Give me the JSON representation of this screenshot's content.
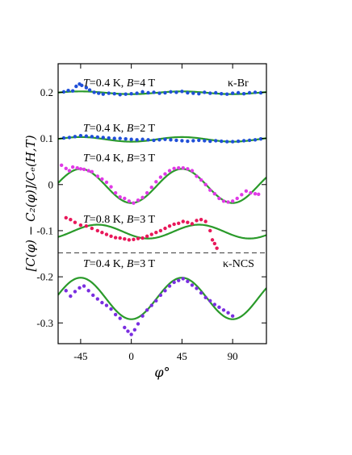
{
  "chart_data": {
    "type": "scatter",
    "xlabel": "φ°",
    "ylabel": "[C(φ) − C₂(φ)]/Cₑ(H,T)",
    "xlim": [
      -65,
      120
    ],
    "ylim": [
      -0.345,
      0.262
    ],
    "x_ticks": [
      -45,
      0,
      45,
      90
    ],
    "x_tick_labels": [
      "-45",
      "0",
      "45",
      "90"
    ],
    "y_ticks": [
      -0.3,
      -0.2,
      -0.1,
      0,
      0.1,
      0.2
    ],
    "y_tick_labels": [
      "-0.3",
      "-0.2",
      "-0.1",
      "0",
      "0.1",
      "0.2"
    ],
    "divider_y": -0.148,
    "series": [
      {
        "name": "T=0.4 K, B=4 T",
        "color": "#1f4fd8",
        "curve_color": "#2a9a2a",
        "fit": {
          "offset": 0.199,
          "amp": 0.003,
          "phase": 45
        },
        "points": [
          [
            -60,
            0.201
          ],
          [
            -56,
            0.204
          ],
          [
            -52,
            0.203
          ],
          [
            -49,
            0.213
          ],
          [
            -46,
            0.218
          ],
          [
            -44,
            0.215
          ],
          [
            -40,
            0.21
          ],
          [
            -37,
            0.205
          ],
          [
            -33,
            0.2
          ],
          [
            -29,
            0.198
          ],
          [
            -25,
            0.196
          ],
          [
            -20,
            0.198
          ],
          [
            -15,
            0.197
          ],
          [
            -10,
            0.195
          ],
          [
            -5,
            0.196
          ],
          [
            0,
            0.197
          ],
          [
            5,
            0.198
          ],
          [
            10,
            0.201
          ],
          [
            15,
            0.199
          ],
          [
            20,
            0.2
          ],
          [
            25,
            0.198
          ],
          [
            30,
            0.199
          ],
          [
            35,
            0.201
          ],
          [
            40,
            0.2
          ],
          [
            45,
            0.202
          ],
          [
            50,
            0.199
          ],
          [
            55,
            0.198
          ],
          [
            60,
            0.197
          ],
          [
            65,
            0.2
          ],
          [
            70,
            0.198
          ],
          [
            75,
            0.199
          ],
          [
            80,
            0.197
          ],
          [
            85,
            0.196
          ],
          [
            90,
            0.198
          ],
          [
            95,
            0.199
          ],
          [
            100,
            0.197
          ],
          [
            105,
            0.199
          ],
          [
            110,
            0.2
          ],
          [
            115,
            0.199
          ]
        ]
      },
      {
        "name": "T=0.4 K, B=2 T",
        "color": "#1f4fd8",
        "curve_color": "#2a9a2a",
        "fit": {
          "offset": 0.098,
          "amp": 0.005,
          "phase": -45
        },
        "points": [
          [
            -60,
            0.101
          ],
          [
            -55,
            0.102
          ],
          [
            -50,
            0.104
          ],
          [
            -45,
            0.106
          ],
          [
            -40,
            0.105
          ],
          [
            -35,
            0.104
          ],
          [
            -30,
            0.103
          ],
          [
            -25,
            0.102
          ],
          [
            -20,
            0.101
          ],
          [
            -15,
            0.1
          ],
          [
            -10,
            0.1
          ],
          [
            -5,
            0.099
          ],
          [
            0,
            0.098
          ],
          [
            5,
            0.097
          ],
          [
            10,
            0.098
          ],
          [
            15,
            0.097
          ],
          [
            20,
            0.096
          ],
          [
            25,
            0.097
          ],
          [
            30,
            0.098
          ],
          [
            35,
            0.097
          ],
          [
            40,
            0.096
          ],
          [
            45,
            0.095
          ],
          [
            50,
            0.094
          ],
          [
            55,
            0.095
          ],
          [
            60,
            0.096
          ],
          [
            65,
            0.095
          ],
          [
            70,
            0.094
          ],
          [
            75,
            0.095
          ],
          [
            80,
            0.094
          ],
          [
            85,
            0.093
          ],
          [
            90,
            0.093
          ],
          [
            95,
            0.094
          ],
          [
            100,
            0.095
          ],
          [
            105,
            0.096
          ],
          [
            110,
            0.097
          ],
          [
            115,
            0.099
          ]
        ]
      },
      {
        "name": "T=0.4 K, B=3 T",
        "color": "#e03ae6",
        "curve_color": "#2a9a2a",
        "fit": {
          "offset": -0.003,
          "amp": 0.037,
          "phase": -45
        },
        "points": [
          [
            -62,
            0.042
          ],
          [
            -58,
            0.035
          ],
          [
            -55,
            0.03
          ],
          [
            -52,
            0.038
          ],
          [
            -48,
            0.036
          ],
          [
            -45,
            0.034
          ],
          [
            -42,
            0.033
          ],
          [
            -38,
            0.03
          ],
          [
            -35,
            0.028
          ],
          [
            -30,
            0.018
          ],
          [
            -26,
            0.012
          ],
          [
            -22,
            0.005
          ],
          [
            -18,
            -0.005
          ],
          [
            -14,
            -0.018
          ],
          [
            -10,
            -0.027
          ],
          [
            -6,
            -0.03
          ],
          [
            -2,
            -0.036
          ],
          [
            2,
            -0.04
          ],
          [
            6,
            -0.034
          ],
          [
            10,
            -0.028
          ],
          [
            14,
            -0.018
          ],
          [
            18,
            -0.006
          ],
          [
            22,
            0.006
          ],
          [
            26,
            0.016
          ],
          [
            30,
            0.023
          ],
          [
            34,
            0.03
          ],
          [
            38,
            0.035
          ],
          [
            42,
            0.036
          ],
          [
            46,
            0.036
          ],
          [
            50,
            0.034
          ],
          [
            54,
            0.03
          ],
          [
            58,
            0.018
          ],
          [
            62,
            0.01
          ],
          [
            66,
            0.0
          ],
          [
            70,
            -0.012
          ],
          [
            74,
            -0.02
          ],
          [
            78,
            -0.03
          ],
          [
            82,
            -0.036
          ],
          [
            86,
            -0.038
          ],
          [
            90,
            -0.036
          ],
          [
            94,
            -0.03
          ],
          [
            98,
            -0.022
          ],
          [
            102,
            -0.014
          ],
          [
            106,
            -0.018
          ],
          [
            110,
            -0.02
          ],
          [
            113,
            -0.021
          ]
        ]
      },
      {
        "name": "T=0.8 K, B=3 T",
        "color": "#e8185a",
        "curve_color": "#2a9a2a",
        "fit": {
          "offset": -0.102,
          "amp": 0.015,
          "phase": -30
        },
        "points": [
          [
            -58,
            -0.072
          ],
          [
            -54,
            -0.076
          ],
          [
            -50,
            -0.082
          ],
          [
            -45,
            -0.088
          ],
          [
            -40,
            -0.09
          ],
          [
            -35,
            -0.095
          ],
          [
            -30,
            -0.1
          ],
          [
            -26,
            -0.104
          ],
          [
            -22,
            -0.108
          ],
          [
            -18,
            -0.112
          ],
          [
            -14,
            -0.115
          ],
          [
            -10,
            -0.116
          ],
          [
            -6,
            -0.118
          ],
          [
            -2,
            -0.12
          ],
          [
            2,
            -0.119
          ],
          [
            6,
            -0.117
          ],
          [
            10,
            -0.116
          ],
          [
            14,
            -0.112
          ],
          [
            18,
            -0.108
          ],
          [
            22,
            -0.104
          ],
          [
            26,
            -0.1
          ],
          [
            30,
            -0.095
          ],
          [
            34,
            -0.09
          ],
          [
            38,
            -0.086
          ],
          [
            42,
            -0.084
          ],
          [
            46,
            -0.08
          ],
          [
            50,
            -0.082
          ],
          [
            54,
            -0.085
          ],
          [
            58,
            -0.078
          ],
          [
            62,
            -0.076
          ],
          [
            66,
            -0.08
          ],
          [
            70,
            -0.1
          ],
          [
            72,
            -0.12
          ],
          [
            74,
            -0.128
          ],
          [
            76,
            -0.138
          ]
        ]
      },
      {
        "name": "T=0.4 K, B=3 T",
        "color": "#7a2ee0",
        "curve_color": "#2a9a2a",
        "fit": {
          "offset": -0.247,
          "amp": 0.045,
          "phase": -45
        },
        "points": [
          [
            -58,
            -0.23
          ],
          [
            -54,
            -0.242
          ],
          [
            -50,
            -0.232
          ],
          [
            -46,
            -0.224
          ],
          [
            -42,
            -0.22
          ],
          [
            -38,
            -0.23
          ],
          [
            -34,
            -0.24
          ],
          [
            -30,
            -0.248
          ],
          [
            -26,
            -0.256
          ],
          [
            -22,
            -0.262
          ],
          [
            -18,
            -0.27
          ],
          [
            -14,
            -0.282
          ],
          [
            -10,
            -0.29
          ],
          [
            -6,
            -0.31
          ],
          [
            -3,
            -0.318
          ],
          [
            0,
            -0.325
          ],
          [
            3,
            -0.315
          ],
          [
            6,
            -0.302
          ],
          [
            10,
            -0.285
          ],
          [
            14,
            -0.272
          ],
          [
            18,
            -0.262
          ],
          [
            22,
            -0.252
          ],
          [
            26,
            -0.24
          ],
          [
            30,
            -0.23
          ],
          [
            34,
            -0.22
          ],
          [
            38,
            -0.212
          ],
          [
            42,
            -0.208
          ],
          [
            46,
            -0.204
          ],
          [
            50,
            -0.21
          ],
          [
            54,
            -0.218
          ],
          [
            58,
            -0.225
          ],
          [
            62,
            -0.235
          ],
          [
            66,
            -0.245
          ],
          [
            70,
            -0.252
          ],
          [
            74,
            -0.26
          ],
          [
            78,
            -0.266
          ],
          [
            82,
            -0.272
          ],
          [
            86,
            -0.278
          ],
          [
            90,
            -0.285
          ]
        ]
      }
    ],
    "annotations": [
      {
        "text": "T=0.4 K, B=4 T",
        "series": 0
      },
      {
        "text": "T=0.4 K, B=2 T",
        "series": 1
      },
      {
        "text": "T=0.4 K, B=3 T",
        "series": 2
      },
      {
        "text": "T=0.8 K, B=3 T",
        "series": 3
      },
      {
        "text": "T=0.4 K, B=3 T",
        "series": 4
      },
      {
        "text": "κ-Br",
        "series": null
      },
      {
        "text": "κ-NCS",
        "series": null
      }
    ]
  }
}
